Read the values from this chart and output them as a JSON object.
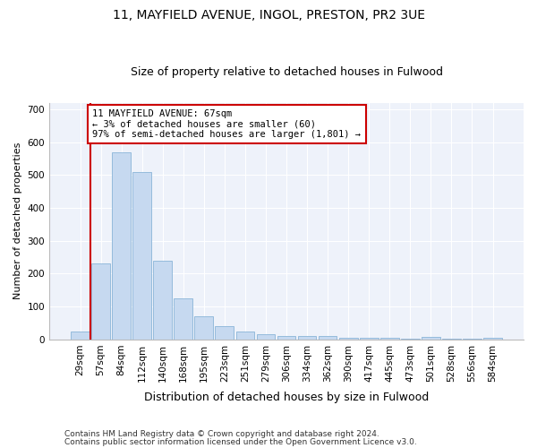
{
  "title1": "11, MAYFIELD AVENUE, INGOL, PRESTON, PR2 3UE",
  "title2": "Size of property relative to detached houses in Fulwood",
  "xlabel": "Distribution of detached houses by size in Fulwood",
  "ylabel": "Number of detached properties",
  "categories": [
    "29sqm",
    "57sqm",
    "84sqm",
    "112sqm",
    "140sqm",
    "168sqm",
    "195sqm",
    "223sqm",
    "251sqm",
    "279sqm",
    "306sqm",
    "334sqm",
    "362sqm",
    "390sqm",
    "417sqm",
    "445sqm",
    "473sqm",
    "501sqm",
    "528sqm",
    "556sqm",
    "584sqm"
  ],
  "values": [
    25,
    230,
    570,
    510,
    240,
    125,
    70,
    40,
    25,
    15,
    10,
    10,
    10,
    5,
    5,
    5,
    2,
    8,
    2,
    2,
    5
  ],
  "bar_color": "#c6d9f0",
  "bar_edge_color": "#8ab4d8",
  "annotation_text": "11 MAYFIELD AVENUE: 67sqm\n← 3% of detached houses are smaller (60)\n97% of semi-detached houses are larger (1,801) →",
  "annotation_box_color": "#ffffff",
  "annotation_box_edge_color": "#cc0000",
  "vline_color": "#cc0000",
  "vline_x": 0.5,
  "footer1": "Contains HM Land Registry data © Crown copyright and database right 2024.",
  "footer2": "Contains public sector information licensed under the Open Government Licence v3.0.",
  "ylim": [
    0,
    720
  ],
  "yticks": [
    0,
    100,
    200,
    300,
    400,
    500,
    600,
    700
  ],
  "bg_color": "#eef2fa",
  "title1_fontsize": 10,
  "title2_fontsize": 9,
  "xlabel_fontsize": 9,
  "ylabel_fontsize": 8,
  "tick_fontsize": 7.5,
  "footer_fontsize": 6.5
}
